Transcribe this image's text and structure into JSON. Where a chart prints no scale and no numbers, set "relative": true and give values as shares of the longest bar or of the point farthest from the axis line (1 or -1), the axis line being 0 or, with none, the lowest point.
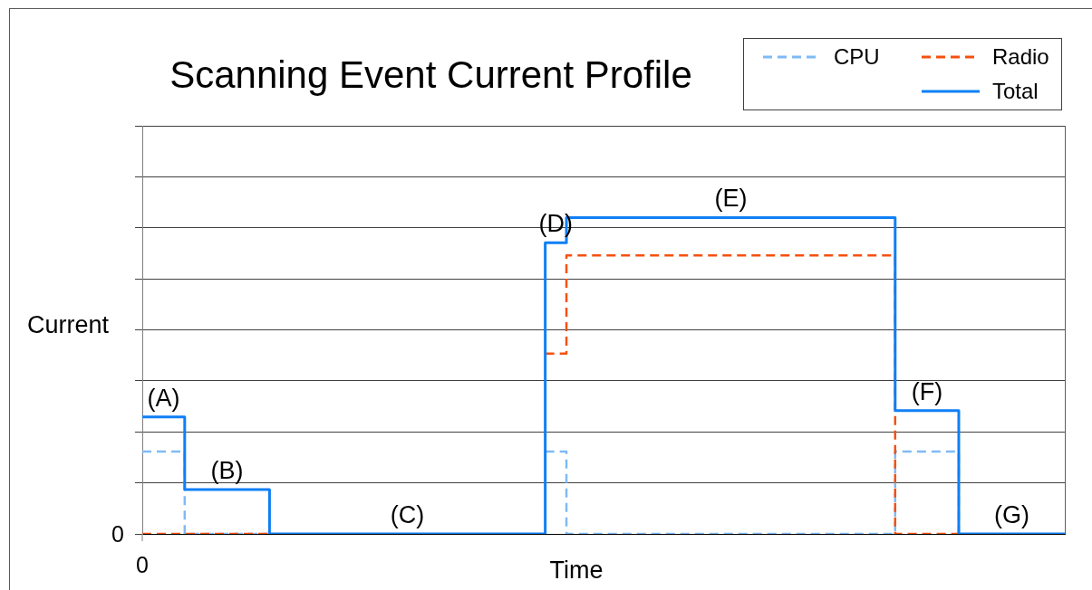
{
  "chart_data": {
    "type": "step",
    "title": "Scanning Event Current Profile",
    "xlabel": "Time",
    "ylabel": "Current",
    "relative": true,
    "categories": [
      null,
      null,
      null,
      null,
      null,
      null,
      null,
      null,
      null,
      null,
      null,
      null,
      null,
      null,
      null,
      null,
      null,
      null,
      null,
      null,
      null,
      null,
      null,
      null,
      null,
      null,
      null,
      null,
      null,
      null,
      null,
      null,
      null,
      null,
      null,
      null,
      null,
      null,
      null,
      null,
      null,
      null,
      null,
      null,
      null,
      null,
      null,
      null,
      null,
      null,
      null,
      null,
      null,
      null,
      null,
      null,
      null,
      null,
      null,
      null,
      null,
      null,
      null,
      null,
      null,
      null,
      null,
      null,
      null,
      null,
      null,
      null,
      null,
      null,
      null,
      null,
      null,
      null,
      null,
      null,
      null,
      null,
      null,
      null,
      null,
      null,
      null,
      null
    ],
    "series": [
      {
        "name": "CPU",
        "color": "#7fbaf5",
        "line_style": "dashed",
        "values": [
          0.26,
          0.26,
          0.26,
          0.26,
          0,
          0,
          0,
          0,
          0,
          0,
          0,
          0,
          0,
          null,
          null,
          null,
          null,
          null,
          null,
          null,
          null,
          null,
          null,
          null,
          null,
          null,
          null,
          null,
          null,
          null,
          null,
          null,
          null,
          null,
          null,
          null,
          null,
          null,
          0.26,
          0.26,
          0,
          0,
          0,
          0,
          0,
          0,
          0,
          0,
          0,
          0,
          0,
          0,
          0,
          0,
          0,
          0,
          0,
          0,
          0,
          0,
          0,
          0,
          0,
          0,
          0,
          0,
          0,
          0,
          0,
          0,
          0,
          0.26,
          0.26,
          0.26,
          0.26,
          0.26,
          0.26,
          0,
          null,
          null,
          null,
          null,
          null,
          null,
          null,
          null,
          null,
          null
        ]
      },
      {
        "name": "Radio",
        "color": "#f5500f",
        "line_style": "dashed",
        "values": [
          0,
          0,
          0,
          0,
          0,
          0,
          0,
          0,
          0,
          0,
          0,
          0,
          0,
          null,
          null,
          null,
          null,
          null,
          null,
          null,
          null,
          null,
          null,
          null,
          null,
          null,
          null,
          null,
          null,
          null,
          null,
          null,
          null,
          null,
          null,
          null,
          null,
          null,
          0.57,
          0.57,
          0.88,
          0.88,
          0.88,
          0.88,
          0.88,
          0.88,
          0.88,
          0.88,
          0.88,
          0.88,
          0.88,
          0.88,
          0.88,
          0.88,
          0.88,
          0.88,
          0.88,
          0.88,
          0.88,
          0.88,
          0.88,
          0.88,
          0.88,
          0.88,
          0.88,
          0.88,
          0.88,
          0.88,
          0.88,
          0.88,
          0.88,
          0,
          0,
          0,
          0,
          0,
          0,
          0,
          null,
          null,
          null,
          null,
          null,
          null,
          null,
          null,
          null,
          null
        ]
      },
      {
        "name": "Total",
        "color": "#0f7ff5",
        "line_style": "solid",
        "values": [
          0.37,
          0.37,
          0.37,
          0.37,
          0.14,
          0.14,
          0.14,
          0.14,
          0.14,
          0.14,
          0.14,
          0.14,
          0,
          0,
          0,
          0,
          0,
          0,
          0,
          0,
          0,
          0,
          0,
          0,
          0,
          0,
          0,
          0,
          0,
          0,
          0,
          0,
          0,
          0,
          0,
          0,
          0,
          0,
          0.92,
          0.92,
          1,
          1,
          1,
          1,
          1,
          1,
          1,
          1,
          1,
          1,
          1,
          1,
          1,
          1,
          1,
          1,
          1,
          1,
          1,
          1,
          1,
          1,
          1,
          1,
          1,
          1,
          1,
          1,
          1,
          1,
          1,
          0.39,
          0.39,
          0.39,
          0.39,
          0.39,
          0.39,
          0,
          0,
          0,
          0,
          0,
          0,
          0,
          0,
          0,
          0,
          0
        ]
      }
    ],
    "annotations": [
      "0",
      "0",
      {
        "text": "(A)",
        "y": 0.37
      },
      {
        "text": "(B)",
        "y": 0.14
      },
      {
        "text": "(C)",
        "y": 0
      },
      {
        "text": "(D)",
        "y": 0.92
      },
      {
        "text": "(E)",
        "y": 1
      },
      {
        "text": "(F)",
        "y": 0.39
      },
      {
        "text": "(G)",
        "y": 0
      }
    ],
    "grid": "y",
    "legend": "top right",
    "marker": "none"
  }
}
